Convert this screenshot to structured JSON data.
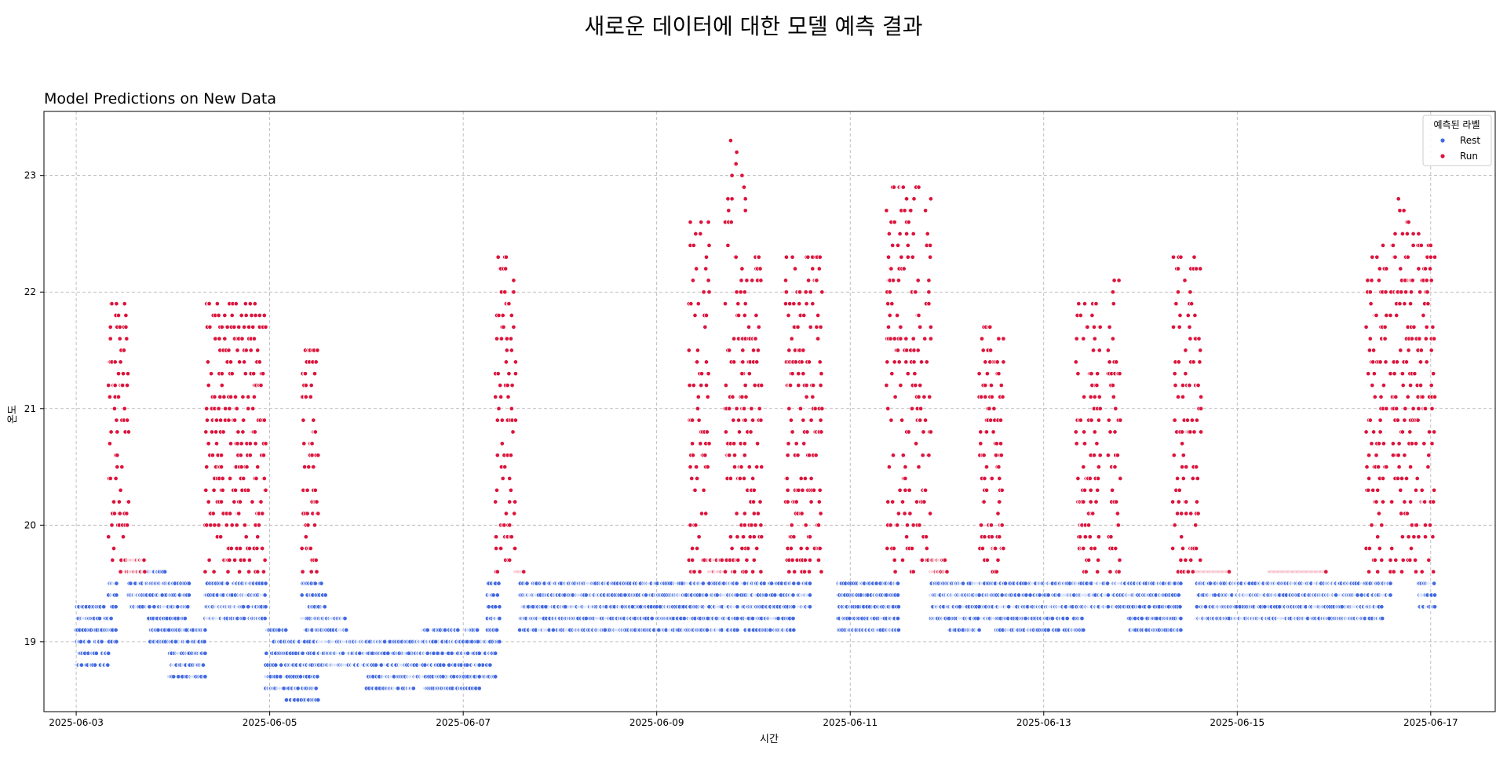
{
  "suptitle": "새로운 데이터에 대한 모델 예측 결과",
  "chart_data": {
    "type": "scatter",
    "title": "Model Predictions on New Data",
    "xlabel": "시간",
    "ylabel": "온도",
    "xlim": [
      "2025-06-02 16:00",
      "2025-06-17 16:00"
    ],
    "ylim": [
      18.4,
      23.55
    ],
    "x_ticks": [
      "2025-06-03",
      "2025-06-05",
      "2025-06-07",
      "2025-06-09",
      "2025-06-11",
      "2025-06-13",
      "2025-06-15",
      "2025-06-17"
    ],
    "y_ticks": [
      19,
      20,
      21,
      22,
      23
    ],
    "grid": true,
    "legend": {
      "title": "예측된 라벨",
      "placement": "top-right"
    },
    "colors": {
      "Rest": "#4169e1",
      "Run": "#dc143c"
    },
    "series": [
      {
        "name": "Rest",
        "bands": [
          [
            "2025-06-03 00:00",
            "2025-06-03 08:00",
            18.8,
            19.3
          ],
          [
            "2025-06-03 08:00",
            "2025-06-03 10:00",
            19.0,
            19.5
          ],
          [
            "2025-06-03 13:00",
            "2025-06-03 22:00",
            19.3,
            19.6
          ],
          [
            "2025-06-03 18:00",
            "2025-06-04 04:00",
            19.0,
            19.5
          ],
          [
            "2025-06-03 23:00",
            "2025-06-04 08:00",
            18.7,
            19.1
          ],
          [
            "2025-06-04 08:00",
            "2025-06-04 23:00",
            19.2,
            19.5
          ],
          [
            "2025-06-04 23:00",
            "2025-06-05 04:00",
            18.6,
            19.1
          ],
          [
            "2025-06-05 04:00",
            "2025-06-05 12:00",
            18.5,
            19.0
          ],
          [
            "2025-06-05 08:00",
            "2025-06-05 14:00",
            19.0,
            19.5
          ],
          [
            "2025-06-05 14:00",
            "2025-06-05 19:00",
            19.0,
            19.2
          ],
          [
            "2025-06-05 12:00",
            "2025-06-06 08:00",
            18.8,
            19.0
          ],
          [
            "2025-06-06 00:00",
            "2025-06-06 12:00",
            18.6,
            19.0
          ],
          [
            "2025-06-06 08:00",
            "2025-06-07 08:00",
            18.7,
            19.0
          ],
          [
            "2025-06-06 14:00",
            "2025-06-07 04:00",
            18.6,
            19.1
          ],
          [
            "2025-06-07 06:00",
            "2025-06-07 09:00",
            19.0,
            19.5
          ],
          [
            "2025-06-07 14:00",
            "2025-06-09 20:00",
            19.1,
            19.5
          ],
          [
            "2025-06-07 18:00",
            "2025-06-08 12:00",
            19.1,
            19.4
          ],
          [
            "2025-06-08 10:00",
            "2025-06-09 08:00",
            19.1,
            19.5
          ],
          [
            "2025-06-09 05:00",
            "2025-06-09 13:00",
            19.1,
            19.5
          ],
          [
            "2025-06-09 17:00",
            "2025-06-09 20:00",
            19.3,
            19.5
          ],
          [
            "2025-06-09 21:00",
            "2025-06-10 10:00",
            19.1,
            19.5
          ],
          [
            "2025-06-10 11:00",
            "2025-06-10 14:00",
            19.3,
            19.5
          ],
          [
            "2025-06-10 21:00",
            "2025-06-11 12:00",
            19.1,
            19.5
          ],
          [
            "2025-06-11 20:00",
            "2025-06-12 12:00",
            19.2,
            19.5
          ],
          [
            "2025-06-12 00:00",
            "2025-06-12 08:00",
            19.1,
            19.4
          ],
          [
            "2025-06-12 12:00",
            "2025-06-13 10:00",
            19.1,
            19.5
          ],
          [
            "2025-06-13 10:00",
            "2025-06-13 16:00",
            19.3,
            19.5
          ],
          [
            "2025-06-13 17:00",
            "2025-06-13 22:00",
            19.3,
            19.5
          ],
          [
            "2025-06-13 21:00",
            "2025-06-14 10:00",
            19.1,
            19.5
          ],
          [
            "2025-06-14 14:00",
            "2025-06-16 10:00",
            19.2,
            19.5
          ],
          [
            "2025-06-15 00:00",
            "2025-06-16 12:00",
            19.2,
            19.5
          ],
          [
            "2025-06-16 12:00",
            "2025-06-16 14:00",
            19.4,
            19.5
          ],
          [
            "2025-06-16 21:00",
            "2025-06-17 01:00",
            19.3,
            19.5
          ]
        ]
      },
      {
        "name": "Run",
        "bands": [
          [
            "2025-06-03 08:00",
            "2025-06-03 13:00",
            19.6,
            21.9
          ],
          [
            "2025-06-03 12:00",
            "2025-06-03 17:00",
            19.6,
            19.7
          ],
          [
            "2025-06-04 08:00",
            "2025-06-04 23:00",
            19.6,
            21.9
          ],
          [
            "2025-06-05 08:00",
            "2025-06-05 12:00",
            19.6,
            21.5
          ],
          [
            "2025-06-07 08:00",
            "2025-06-07 13:00",
            19.6,
            22.3
          ],
          [
            "2025-06-07 13:00",
            "2025-06-07 15:00",
            19.6,
            19.6
          ],
          [
            "2025-06-09 08:00",
            "2025-06-09 13:00",
            19.6,
            22.6
          ],
          [
            "2025-06-09 13:00",
            "2025-06-09 17:00",
            19.6,
            19.7
          ],
          [
            "2025-06-09 17:00",
            "2025-06-09 22:00",
            19.6,
            23.3
          ],
          [
            "2025-06-09 21:00",
            "2025-06-10 02:00",
            19.6,
            22.3
          ],
          [
            "2025-06-10 08:00",
            "2025-06-10 17:00",
            19.6,
            22.3
          ],
          [
            "2025-06-11 09:00",
            "2025-06-11 14:00",
            19.6,
            22.9
          ],
          [
            "2025-06-11 14:00",
            "2025-06-11 20:00",
            19.6,
            22.9
          ],
          [
            "2025-06-11 20:00",
            "2025-06-12 00:00",
            19.6,
            19.7
          ],
          [
            "2025-06-12 08:00",
            "2025-06-12 14:00",
            19.6,
            21.7
          ],
          [
            "2025-06-13 08:00",
            "2025-06-13 14:00",
            19.6,
            21.9
          ],
          [
            "2025-06-13 16:00",
            "2025-06-13 19:00",
            19.6,
            22.1
          ],
          [
            "2025-06-14 08:00",
            "2025-06-14 15:00",
            19.6,
            22.3
          ],
          [
            "2025-06-14 14:00",
            "2025-06-14 22:00",
            19.6,
            19.6
          ],
          [
            "2025-06-15 08:00",
            "2025-06-15 22:00",
            19.6,
            19.6
          ],
          [
            "2025-06-16 08:00",
            "2025-06-16 13:00",
            19.6,
            22.4
          ],
          [
            "2025-06-16 14:00",
            "2025-06-16 19:00",
            19.6,
            22.8
          ],
          [
            "2025-06-16 19:00",
            "2025-06-17 01:00",
            19.6,
            22.5
          ]
        ]
      }
    ]
  }
}
